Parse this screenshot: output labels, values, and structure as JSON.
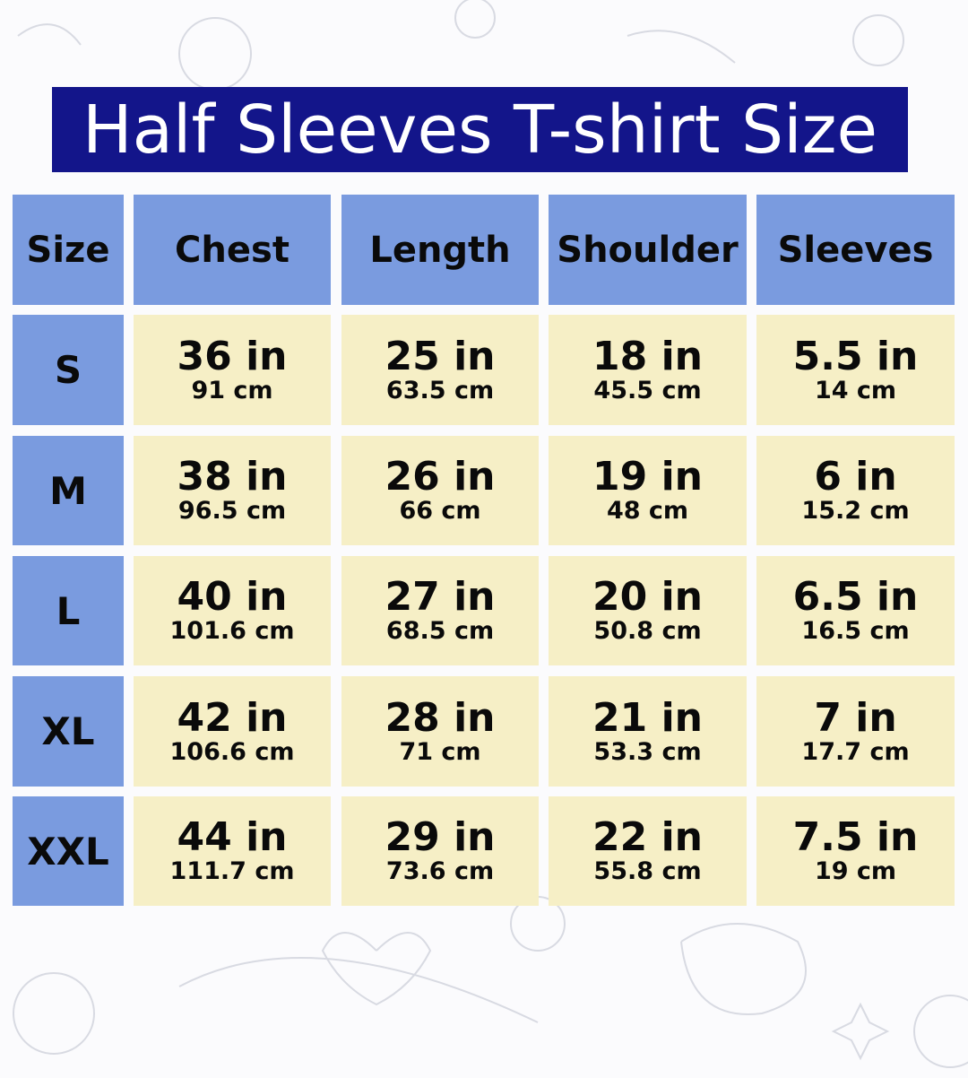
{
  "title": "Half Sleeves T-shirt Size",
  "colors": {
    "title_bg": "#13158a",
    "header_bg": "#7a9bdf",
    "cell_bg": "#f6efc6"
  },
  "headers": [
    "Size",
    "Chest",
    "Length",
    "Shoulder",
    "Sleeves"
  ],
  "rows": [
    {
      "size": "S",
      "values": [
        {
          "in": "36 in",
          "cm": "91 cm"
        },
        {
          "in": "25 in",
          "cm": "63.5 cm"
        },
        {
          "in": "18 in",
          "cm": "45.5 cm"
        },
        {
          "in": "5.5 in",
          "cm": "14 cm"
        }
      ]
    },
    {
      "size": "M",
      "values": [
        {
          "in": "38 in",
          "cm": "96.5 cm"
        },
        {
          "in": "26 in",
          "cm": "66 cm"
        },
        {
          "in": "19 in",
          "cm": "48 cm"
        },
        {
          "in": "6 in",
          "cm": "15.2 cm"
        }
      ]
    },
    {
      "size": "L",
      "values": [
        {
          "in": "40 in",
          "cm": "101.6 cm"
        },
        {
          "in": "27 in",
          "cm": "68.5 cm"
        },
        {
          "in": "20 in",
          "cm": "50.8 cm"
        },
        {
          "in": "6.5 in",
          "cm": "16.5 cm"
        }
      ]
    },
    {
      "size": "XL",
      "values": [
        {
          "in": "42 in",
          "cm": "106.6 cm"
        },
        {
          "in": "28 in",
          "cm": "71 cm"
        },
        {
          "in": "21 in",
          "cm": "53.3 cm"
        },
        {
          "in": "7 in",
          "cm": "17.7 cm"
        }
      ]
    },
    {
      "size": "XXL",
      "values": [
        {
          "in": "44 in",
          "cm": "111.7 cm"
        },
        {
          "in": "29 in",
          "cm": "73.6 cm"
        },
        {
          "in": "22 in",
          "cm": "55.8 cm"
        },
        {
          "in": "7.5 in",
          "cm": "19 cm"
        }
      ]
    }
  ]
}
